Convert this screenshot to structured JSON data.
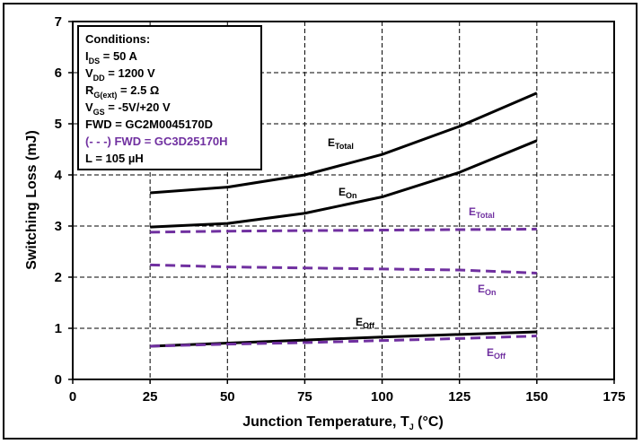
{
  "chart_data": {
    "type": "line",
    "xlabel": {
      "main": "Junction Temperature, T",
      "sub": "J",
      "tail": " (°C)"
    },
    "ylabel": "Switching Loss (mJ)",
    "xlim": [
      0,
      175
    ],
    "ylim": [
      0,
      7
    ],
    "xticks": [
      0,
      25,
      50,
      75,
      100,
      125,
      150,
      175
    ],
    "yticks": [
      0,
      1,
      2,
      3,
      4,
      5,
      6,
      7
    ],
    "grid": true,
    "x": [
      25,
      50,
      75,
      100,
      125,
      150
    ],
    "series": [
      {
        "name": "ETotal",
        "label_main": "E",
        "label_sub": "Total",
        "style": "solid",
        "color": "#000000",
        "values": [
          3.65,
          3.76,
          4.0,
          4.4,
          4.95,
          5.6
        ]
      },
      {
        "name": "EOn",
        "label_main": "E",
        "label_sub": "On",
        "style": "solid",
        "color": "#000000",
        "values": [
          2.98,
          3.05,
          3.25,
          3.57,
          4.05,
          4.67
        ]
      },
      {
        "name": "EOff",
        "label_main": "E",
        "label_sub": "Off",
        "style": "solid",
        "color": "#000000",
        "values": [
          0.65,
          0.71,
          0.77,
          0.83,
          0.88,
          0.93
        ]
      },
      {
        "name": "ETotal (GC3D25170H)",
        "label_main": "E",
        "label_sub": "Total",
        "style": "dashed",
        "color": "#7030a0",
        "values": [
          2.88,
          2.9,
          2.91,
          2.92,
          2.93,
          2.94
        ]
      },
      {
        "name": "EOn (GC3D25170H)",
        "label_main": "E",
        "label_sub": "On",
        "style": "dashed",
        "color": "#7030a0",
        "values": [
          2.24,
          2.2,
          2.18,
          2.16,
          2.14,
          2.08
        ]
      },
      {
        "name": "EOff (GC3D25170H)",
        "label_main": "E",
        "label_sub": "Off",
        "style": "dashed",
        "color": "#7030a0",
        "values": [
          0.65,
          0.69,
          0.72,
          0.76,
          0.8,
          0.85
        ]
      }
    ],
    "conditions": {
      "heading": "Conditions:",
      "lines": [
        {
          "main": "I",
          "sub": "DS",
          "tail": " = 50 A",
          "color": "#000000"
        },
        {
          "main": "V",
          "sub": "DD",
          "tail": " = 1200 V",
          "color": "#000000"
        },
        {
          "main": "R",
          "sub": "G(ext)",
          "tail": " = 2.5 Ω",
          "color": "#000000"
        },
        {
          "main": "V",
          "sub": "GS",
          "tail": " = -5V/+20 V",
          "color": "#000000"
        },
        {
          "main": "FWD = GC2M0045170D",
          "sub": "",
          "tail": "",
          "color": "#000000"
        },
        {
          "main": "(- - -) FWD = GC3D25170H",
          "sub": "",
          "tail": "",
          "color": "#7030a0"
        },
        {
          "main": "L = 105 µH",
          "sub": "",
          "tail": "",
          "color": "#000000"
        }
      ]
    }
  }
}
